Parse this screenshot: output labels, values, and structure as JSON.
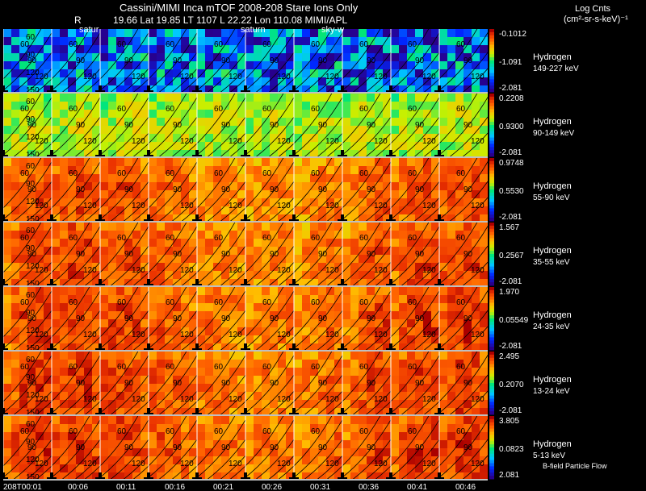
{
  "header": {
    "line1": "Cassini/MIMI Inca mTOF  2008-208   Stare    Ions Only",
    "r_label": "R",
    "line2": "19.66 Lat 19.85 LT 1107 L        22.22 Lon         110.08  MIMI/APL",
    "units_title": "Log Cnts",
    "units": "(cm²-sr-s-keV)⁻¹",
    "sub_labels": [
      "satur",
      "saturn",
      "sky-w"
    ]
  },
  "chart_data": {
    "type": "heatmap",
    "description_axis": "time (UTC) along x, energy channel rows along y, each cell an all-sky stare image with pitch-angle contours",
    "time_labels": [
      "208T00:01",
      "00:06",
      "00:11",
      "00:16",
      "00:21",
      "00:26",
      "00:31",
      "00:36",
      "00:41",
      "00:46"
    ],
    "pitch_contours": [
      "60",
      "90",
      "120",
      "150"
    ],
    "rows": [
      {
        "species": "Hydrogen",
        "energy": "149-227 keV",
        "cmax": "-0.1012",
        "cmid": "-1.091",
        "cmin": "-2.081",
        "level": 0.25
      },
      {
        "species": "Hydrogen",
        "energy": "90-149 keV",
        "cmax": "0.2208",
        "cmid": "0.9300",
        "cmin": "-2.081",
        "level": 0.62
      },
      {
        "species": "Hydrogen",
        "energy": "55-90 keV",
        "cmax": "0.9748",
        "cmid": "0.5530",
        "cmin": "-2.081",
        "level": 0.85
      },
      {
        "species": "Hydrogen",
        "energy": "35-55 keV",
        "cmax": "1.567",
        "cmid": "0.2567",
        "cmin": "-2.081",
        "level": 0.86
      },
      {
        "species": "Hydrogen",
        "energy": "24-35 keV",
        "cmax": "1.970",
        "cmid": "0.05549",
        "cmin": "-2.081",
        "level": 0.87
      },
      {
        "species": "Hydrogen",
        "energy": "13-24 keV",
        "cmax": "2.495",
        "cmid": "0.2070",
        "cmin": "-2.081",
        "level": 0.87
      },
      {
        "species": "Hydrogen",
        "energy": "5-13 keV",
        "cmax": "3.805",
        "cmid": "0.0823",
        "cmin": "2.081",
        "level": 0.88
      }
    ],
    "footer_note": "B-field Particle Flow"
  }
}
